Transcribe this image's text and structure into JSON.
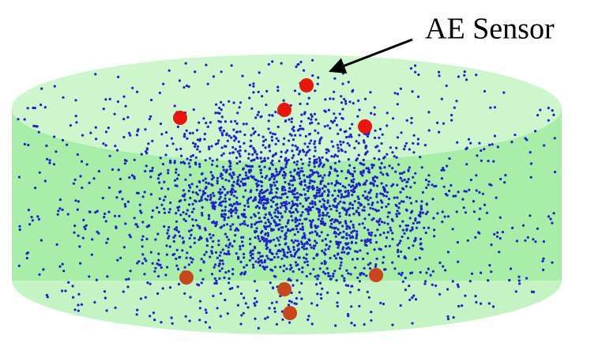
{
  "annotation": {
    "label": "AE Sensor"
  }
}
